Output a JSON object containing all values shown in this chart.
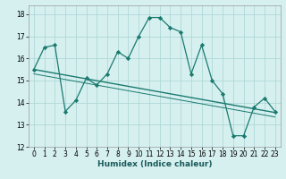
{
  "xlabel": "Humidex (Indice chaleur)",
  "xlim": [
    -0.5,
    23.5
  ],
  "ylim": [
    12,
    18.4
  ],
  "yticks": [
    12,
    13,
    14,
    15,
    16,
    17,
    18
  ],
  "xticks": [
    0,
    1,
    2,
    3,
    4,
    5,
    6,
    7,
    8,
    9,
    10,
    11,
    12,
    13,
    14,
    15,
    16,
    17,
    18,
    19,
    20,
    21,
    22,
    23
  ],
  "bg_color": "#d6f0f0",
  "line_color": "#1a7a6e",
  "grid_color": "#b0d8d8",
  "curve1_x": [
    0,
    1,
    2,
    3,
    4,
    5,
    6,
    7,
    8,
    9,
    10,
    11,
    12,
    13,
    14,
    15,
    16,
    17,
    18,
    19,
    20,
    21,
    22,
    23
  ],
  "curve1_y": [
    15.5,
    16.5,
    16.6,
    13.6,
    14.1,
    15.1,
    14.8,
    15.3,
    16.3,
    16.0,
    17.0,
    17.85,
    17.85,
    17.4,
    17.2,
    15.3,
    16.6,
    15.0,
    14.4,
    12.5,
    12.5,
    13.8,
    14.2,
    13.6
  ],
  "line1_x": [
    0,
    23
  ],
  "line1_y": [
    15.5,
    13.55
  ],
  "line2_x": [
    0,
    23
  ],
  "line2_y": [
    15.3,
    13.35
  ],
  "xlabel_fontsize": 6.5,
  "tick_fontsize": 5.5
}
